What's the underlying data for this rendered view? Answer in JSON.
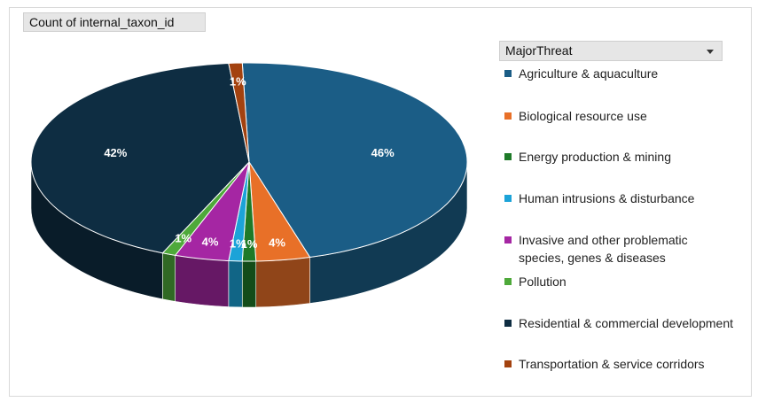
{
  "field_button": "Count of internal_taxon_id",
  "legend_title": "MajorThreat",
  "chart_data": {
    "type": "pie",
    "style": "3d",
    "legend_position": "right",
    "slices": [
      {
        "label": "Agriculture & aquaculture",
        "value": 46,
        "data_label": "46%",
        "color": "#1b5d86"
      },
      {
        "label": "Biological resource use",
        "value": 4,
        "data_label": "4%",
        "color": "#e87028"
      },
      {
        "label": "Energy production & mining",
        "value": 1,
        "data_label": "1%",
        "color": "#1e7a28"
      },
      {
        "label": "Human intrusions & disturbance",
        "value": 1,
        "data_label": "1%",
        "color": "#1ca3d8"
      },
      {
        "label": "Invasive and other problematic species, genes & diseases",
        "value": 4,
        "data_label": "4%",
        "color": "#a526a3"
      },
      {
        "label": "Pollution",
        "value": 1,
        "data_label": "1%",
        "color": "#4ea93a"
      },
      {
        "label": "Residential & commercial development",
        "value": 42,
        "data_label": "42%",
        "color": "#0e2d42"
      },
      {
        "label": "Transportation & service corridors",
        "value": 1,
        "data_label": "1%",
        "color": "#a3420f"
      }
    ]
  }
}
